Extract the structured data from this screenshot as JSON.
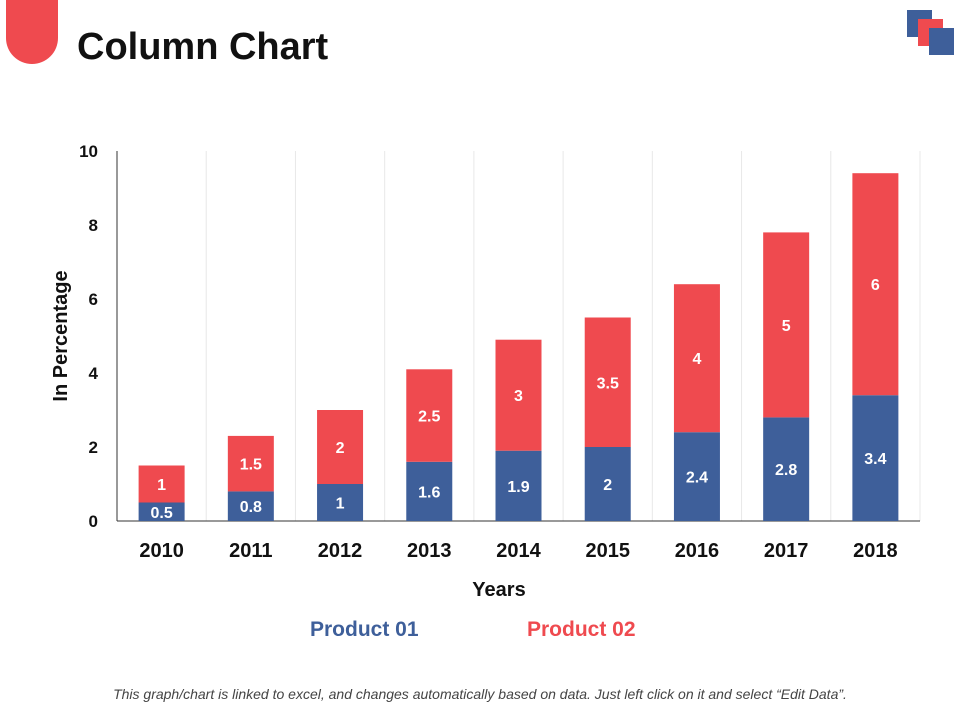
{
  "header": {
    "title": "Column Chart"
  },
  "colors": {
    "product01": "#3e5f9a",
    "product02": "#ef4a4f",
    "accent": "#ef4a4f"
  },
  "chart_data": {
    "type": "bar",
    "stacked": true,
    "categories": [
      "2010",
      "2011",
      "2012",
      "2013",
      "2014",
      "2015",
      "2016",
      "2017",
      "2018"
    ],
    "series": [
      {
        "name": "Product 01",
        "values": [
          0.5,
          0.8,
          1,
          1.6,
          1.9,
          2,
          2.4,
          2.8,
          3.4
        ]
      },
      {
        "name": "Product 02",
        "values": [
          1,
          1.5,
          2,
          2.5,
          3,
          3.5,
          4,
          5,
          6
        ]
      }
    ],
    "xlabel": "Years",
    "ylabel": "In Percentage",
    "ylim": [
      0,
      10
    ],
    "yticks": [
      0,
      2,
      4,
      6,
      8,
      10
    ],
    "grid": "vertical",
    "legend": "bottom"
  },
  "footer": {
    "note": "This graph/chart is linked to excel, and changes automatically based on data. Just left click on it and select “Edit Data”."
  }
}
